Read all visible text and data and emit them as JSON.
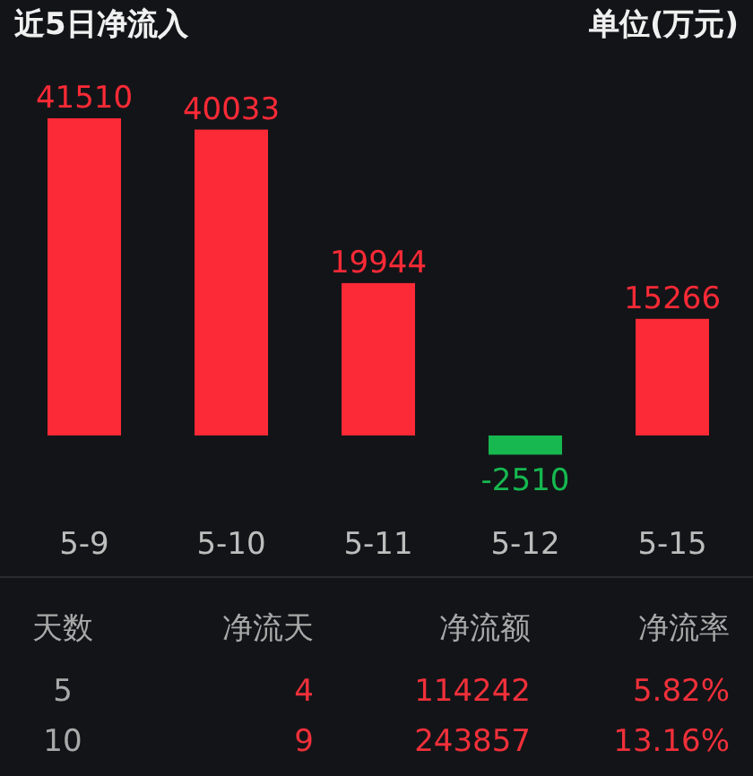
{
  "chart_data": [
    {
      "type": "bar",
      "title": "近5日净流入",
      "annotations": [
        "单位(万元)"
      ],
      "categories": [
        "5-9",
        "5-10",
        "5-11",
        "5-12",
        "5-15"
      ],
      "values": [
        41510,
        40033,
        19944,
        -2510,
        15266
      ],
      "colors": [
        "#fb2a36",
        "#fb2a36",
        "#fb2a36",
        "#16b84f",
        "#fb2a36"
      ],
      "data_labels": true
    },
    {
      "type": "other",
      "annotations": [
        "天数",
        "净流天",
        "净流额",
        "净流率",
        "5",
        "4",
        "114242",
        "5.82%",
        "10",
        "9",
        "243857",
        "13.16%"
      ]
    }
  ]
}
